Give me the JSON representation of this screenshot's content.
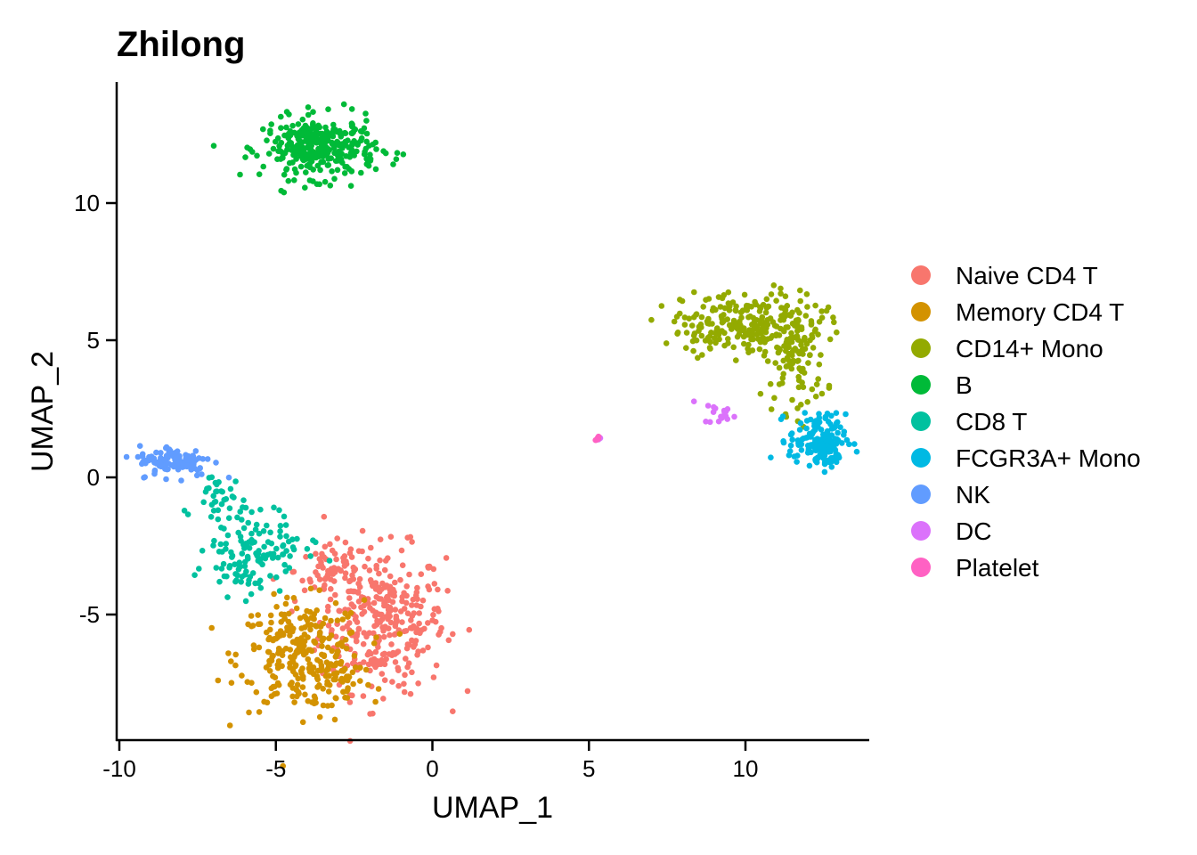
{
  "chart_data": {
    "type": "scatter",
    "title": "Zhilong",
    "xlabel": "UMAP_1",
    "ylabel": "UMAP_2",
    "xlim": [
      -10,
      14
    ],
    "ylim": [
      -9.5,
      14.2
    ],
    "x_ticks": [
      -10,
      -5,
      0,
      5,
      10
    ],
    "y_ticks": [
      -5,
      0,
      5,
      10
    ],
    "x_tick_labels": [
      "-10",
      "-5",
      "0",
      "5",
      "10"
    ],
    "y_tick_labels": [
      "-5",
      "0",
      "5",
      "10"
    ],
    "grid": false,
    "legend_position": "right",
    "series": [
      {
        "name": "Naive CD4 T",
        "color": "#F8766D",
        "clusters": [
          {
            "cx": -1.6,
            "cy": -5.2,
            "sx": 1.0,
            "sy": 1.3,
            "n": 320
          },
          {
            "cx": -3.2,
            "cy": -3.4,
            "sx": 0.6,
            "sy": 0.6,
            "n": 60
          }
        ]
      },
      {
        "name": "Memory CD4 T",
        "color": "#D39200",
        "clusters": [
          {
            "cx": -4.2,
            "cy": -6.5,
            "sx": 1.0,
            "sy": 1.0,
            "n": 260
          },
          {
            "cx": -3.0,
            "cy": -7.4,
            "sx": 0.6,
            "sy": 0.5,
            "n": 40
          }
        ]
      },
      {
        "name": "CD14+ Mono",
        "color": "#93AA00",
        "clusters": [
          {
            "cx": 10.2,
            "cy": 5.6,
            "sx": 1.1,
            "sy": 0.6,
            "n": 220
          },
          {
            "cx": 11.6,
            "cy": 4.2,
            "sx": 0.5,
            "sy": 0.9,
            "n": 90
          },
          {
            "cx": 8.7,
            "cy": 5.3,
            "sx": 0.5,
            "sy": 0.3,
            "n": 30
          }
        ]
      },
      {
        "name": "B",
        "color": "#00BA38",
        "clusters": [
          {
            "cx": -3.6,
            "cy": 12.0,
            "sx": 0.9,
            "sy": 0.55,
            "n": 330
          }
        ]
      },
      {
        "name": "CD8 T",
        "color": "#00C19F",
        "clusters": [
          {
            "cx": -6.0,
            "cy": -2.5,
            "sx": 0.6,
            "sy": 0.9,
            "n": 110
          },
          {
            "cx": -6.9,
            "cy": -0.6,
            "sx": 0.4,
            "sy": 0.4,
            "n": 25
          },
          {
            "cx": -5.0,
            "cy": -2.9,
            "sx": 0.6,
            "sy": 0.5,
            "n": 30
          }
        ]
      },
      {
        "name": "FCGR3A+ Mono",
        "color": "#00B9E3",
        "clusters": [
          {
            "cx": 12.3,
            "cy": 1.4,
            "sx": 0.45,
            "sy": 0.45,
            "n": 130
          },
          {
            "cx": 12.6,
            "cy": 0.8,
            "sx": 0.2,
            "sy": 0.25,
            "n": 40
          }
        ]
      },
      {
        "name": "NK",
        "color": "#619CFF",
        "clusters": [
          {
            "cx": -8.2,
            "cy": 0.6,
            "sx": 0.6,
            "sy": 0.28,
            "n": 110
          }
        ]
      },
      {
        "name": "DC",
        "color": "#DB72FB",
        "clusters": [
          {
            "cx": 9.2,
            "cy": 2.35,
            "sx": 0.25,
            "sy": 0.2,
            "n": 18
          },
          {
            "cx": 5.3,
            "cy": 1.45,
            "sx": 0.04,
            "sy": 0.04,
            "n": 3
          }
        ]
      },
      {
        "name": "Platelet",
        "color": "#FF61C3",
        "clusters": [
          {
            "cx": 5.3,
            "cy": 1.42,
            "sx": 0.05,
            "sy": 0.04,
            "n": 6
          }
        ]
      }
    ]
  }
}
